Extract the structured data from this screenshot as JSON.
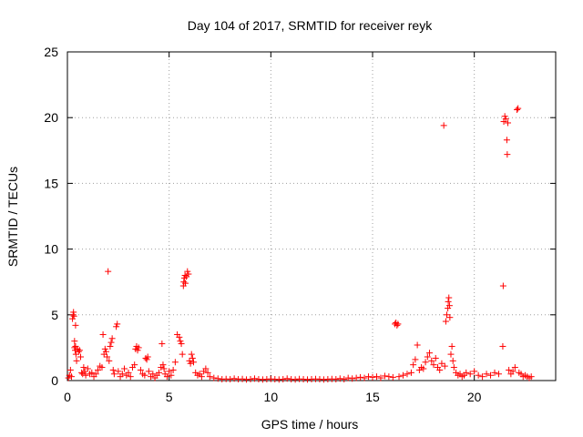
{
  "chart_data": {
    "type": "scatter",
    "title": "Day 104 of 2017, SRMTID for receiver reyk",
    "xlabel": "GPS time / hours",
    "ylabel": "SRMTID / TECUs",
    "xlim": [
      0,
      24
    ],
    "ylim": [
      0,
      25
    ],
    "xticks": [
      0,
      5,
      10,
      15,
      20
    ],
    "yticks": [
      0,
      5,
      10,
      15,
      20,
      25
    ],
    "grid": true,
    "marker": "+",
    "color": "#ff0000",
    "series": [
      {
        "points": [
          [
            0.05,
            0.2
          ],
          [
            0.1,
            0.4
          ],
          [
            0.15,
            0.8
          ],
          [
            0.2,
            0.3
          ],
          [
            0.25,
            4.7
          ],
          [
            0.28,
            5.0
          ],
          [
            0.3,
            5.2
          ],
          [
            0.32,
            4.9
          ],
          [
            0.35,
            2.5
          ],
          [
            0.38,
            2.3
          ],
          [
            0.4,
            2.6
          ],
          [
            0.42,
            2.0
          ],
          [
            0.45,
            1.5
          ],
          [
            0.35,
            3.0
          ],
          [
            0.4,
            4.2
          ],
          [
            0.5,
            2.4
          ],
          [
            0.55,
            2.2
          ],
          [
            0.6,
            2.3
          ],
          [
            0.65,
            1.8
          ],
          [
            0.7,
            0.6
          ],
          [
            0.75,
            0.5
          ],
          [
            0.8,
            1.0
          ],
          [
            0.85,
            0.7
          ],
          [
            0.9,
            0.4
          ],
          [
            1.0,
            0.9
          ],
          [
            1.1,
            0.5
          ],
          [
            1.2,
            0.6
          ],
          [
            1.3,
            0.3
          ],
          [
            1.4,
            0.5
          ],
          [
            1.5,
            0.8
          ],
          [
            1.6,
            1.1
          ],
          [
            1.7,
            1.0
          ],
          [
            1.75,
            3.5
          ],
          [
            1.8,
            2.0
          ],
          [
            1.85,
            2.4
          ],
          [
            1.9,
            2.2
          ],
          [
            1.95,
            1.8
          ],
          [
            2.0,
            8.3
          ],
          [
            2.05,
            1.5
          ],
          [
            2.1,
            2.6
          ],
          [
            2.15,
            2.9
          ],
          [
            2.2,
            3.2
          ],
          [
            2.25,
            0.8
          ],
          [
            2.3,
            0.5
          ],
          [
            2.4,
            4.1
          ],
          [
            2.45,
            4.3
          ],
          [
            2.5,
            0.7
          ],
          [
            2.6,
            0.3
          ],
          [
            2.7,
            0.5
          ],
          [
            2.8,
            0.9
          ],
          [
            2.9,
            0.4
          ],
          [
            3.0,
            0.6
          ],
          [
            3.1,
            0.3
          ],
          [
            3.2,
            1.0
          ],
          [
            3.3,
            1.2
          ],
          [
            3.35,
            2.4
          ],
          [
            3.4,
            2.6
          ],
          [
            3.45,
            2.3
          ],
          [
            3.5,
            2.5
          ],
          [
            3.6,
            0.8
          ],
          [
            3.7,
            0.5
          ],
          [
            3.8,
            0.4
          ],
          [
            3.85,
            1.7
          ],
          [
            3.9,
            1.6
          ],
          [
            3.95,
            1.8
          ],
          [
            4.0,
            0.7
          ],
          [
            4.1,
            0.3
          ],
          [
            4.2,
            0.5
          ],
          [
            4.3,
            0.2
          ],
          [
            4.4,
            0.4
          ],
          [
            4.5,
            0.6
          ],
          [
            4.6,
            1.0
          ],
          [
            4.65,
            2.8
          ],
          [
            4.7,
            1.2
          ],
          [
            4.75,
            0.9
          ],
          [
            4.8,
            0.5
          ],
          [
            4.9,
            0.3
          ],
          [
            5.0,
            0.7
          ],
          [
            5.1,
            0.4
          ],
          [
            5.2,
            0.8
          ],
          [
            5.3,
            1.4
          ],
          [
            5.4,
            3.5
          ],
          [
            5.5,
            3.3
          ],
          [
            5.55,
            3.0
          ],
          [
            5.6,
            2.8
          ],
          [
            5.65,
            2.0
          ],
          [
            5.7,
            7.2
          ],
          [
            5.72,
            7.5
          ],
          [
            5.75,
            7.8
          ],
          [
            5.78,
            8.0
          ],
          [
            5.8,
            7.4
          ],
          [
            5.85,
            7.9
          ],
          [
            5.9,
            8.3
          ],
          [
            5.95,
            8.1
          ],
          [
            6.0,
            1.5
          ],
          [
            6.05,
            1.3
          ],
          [
            6.1,
            2.0
          ],
          [
            6.15,
            1.7
          ],
          [
            6.2,
            1.4
          ],
          [
            6.3,
            0.6
          ],
          [
            6.4,
            0.4
          ],
          [
            6.5,
            0.5
          ],
          [
            6.6,
            0.3
          ],
          [
            6.7,
            0.7
          ],
          [
            6.8,
            0.9
          ],
          [
            6.9,
            0.6
          ],
          [
            7.0,
            0.3
          ],
          [
            7.2,
            0.2
          ],
          [
            7.4,
            0.15
          ],
          [
            7.6,
            0.1
          ],
          [
            7.8,
            0.12
          ],
          [
            8.0,
            0.1
          ],
          [
            8.2,
            0.15
          ],
          [
            8.4,
            0.1
          ],
          [
            8.6,
            0.12
          ],
          [
            8.8,
            0.08
          ],
          [
            9.0,
            0.1
          ],
          [
            9.2,
            0.15
          ],
          [
            9.4,
            0.1
          ],
          [
            9.6,
            0.08
          ],
          [
            9.8,
            0.1
          ],
          [
            10.0,
            0.12
          ],
          [
            10.2,
            0.1
          ],
          [
            10.4,
            0.08
          ],
          [
            10.6,
            0.1
          ],
          [
            10.8,
            0.15
          ],
          [
            11.0,
            0.1
          ],
          [
            11.2,
            0.08
          ],
          [
            11.4,
            0.12
          ],
          [
            11.6,
            0.1
          ],
          [
            11.8,
            0.08
          ],
          [
            12.0,
            0.1
          ],
          [
            12.2,
            0.12
          ],
          [
            12.4,
            0.1
          ],
          [
            12.6,
            0.08
          ],
          [
            12.8,
            0.1
          ],
          [
            13.0,
            0.12
          ],
          [
            13.2,
            0.1
          ],
          [
            13.4,
            0.15
          ],
          [
            13.6,
            0.1
          ],
          [
            13.8,
            0.2
          ],
          [
            14.0,
            0.15
          ],
          [
            14.2,
            0.2
          ],
          [
            14.4,
            0.25
          ],
          [
            14.6,
            0.2
          ],
          [
            14.8,
            0.3
          ],
          [
            15.0,
            0.25
          ],
          [
            15.2,
            0.3
          ],
          [
            15.4,
            0.2
          ],
          [
            15.6,
            0.35
          ],
          [
            15.8,
            0.3
          ],
          [
            16.0,
            0.25
          ],
          [
            16.1,
            4.3
          ],
          [
            16.15,
            4.4
          ],
          [
            16.2,
            4.2
          ],
          [
            16.25,
            4.3
          ],
          [
            16.3,
            0.3
          ],
          [
            16.5,
            0.4
          ],
          [
            16.7,
            0.5
          ],
          [
            16.9,
            0.6
          ],
          [
            17.0,
            1.2
          ],
          [
            17.1,
            1.6
          ],
          [
            17.2,
            2.7
          ],
          [
            17.3,
            0.8
          ],
          [
            17.4,
            1.0
          ],
          [
            17.5,
            0.9
          ],
          [
            17.6,
            1.4
          ],
          [
            17.7,
            1.8
          ],
          [
            17.8,
            2.1
          ],
          [
            17.9,
            1.5
          ],
          [
            18.0,
            1.2
          ],
          [
            18.1,
            1.7
          ],
          [
            18.2,
            1.0
          ],
          [
            18.3,
            0.8
          ],
          [
            18.4,
            1.3
          ],
          [
            18.5,
            19.4
          ],
          [
            18.55,
            1.1
          ],
          [
            18.6,
            4.5
          ],
          [
            18.65,
            5.0
          ],
          [
            18.7,
            5.5
          ],
          [
            18.72,
            6.0
          ],
          [
            18.75,
            6.3
          ],
          [
            18.78,
            5.7
          ],
          [
            18.8,
            4.8
          ],
          [
            18.85,
            2.0
          ],
          [
            18.9,
            2.6
          ],
          [
            18.95,
            1.5
          ],
          [
            19.0,
            1.0
          ],
          [
            19.1,
            0.6
          ],
          [
            19.2,
            0.4
          ],
          [
            19.3,
            0.5
          ],
          [
            19.4,
            0.3
          ],
          [
            19.5,
            0.4
          ],
          [
            19.6,
            0.6
          ],
          [
            19.8,
            0.5
          ],
          [
            20.0,
            0.7
          ],
          [
            20.2,
            0.4
          ],
          [
            20.4,
            0.3
          ],
          [
            20.6,
            0.5
          ],
          [
            20.8,
            0.4
          ],
          [
            21.0,
            0.6
          ],
          [
            21.2,
            0.5
          ],
          [
            21.4,
            2.6
          ],
          [
            21.42,
            7.2
          ],
          [
            21.45,
            19.7
          ],
          [
            21.5,
            20.1
          ],
          [
            21.55,
            19.9
          ],
          [
            21.6,
            18.3
          ],
          [
            21.62,
            17.2
          ],
          [
            21.65,
            19.6
          ],
          [
            21.7,
            0.8
          ],
          [
            21.8,
            0.5
          ],
          [
            21.9,
            0.7
          ],
          [
            22.0,
            1.0
          ],
          [
            22.1,
            20.6
          ],
          [
            22.15,
            20.7
          ],
          [
            22.2,
            0.6
          ],
          [
            22.3,
            0.5
          ],
          [
            22.4,
            0.3
          ],
          [
            22.5,
            0.4
          ],
          [
            22.6,
            0.3
          ],
          [
            22.7,
            0.2
          ],
          [
            22.8,
            0.3
          ]
        ]
      }
    ]
  }
}
